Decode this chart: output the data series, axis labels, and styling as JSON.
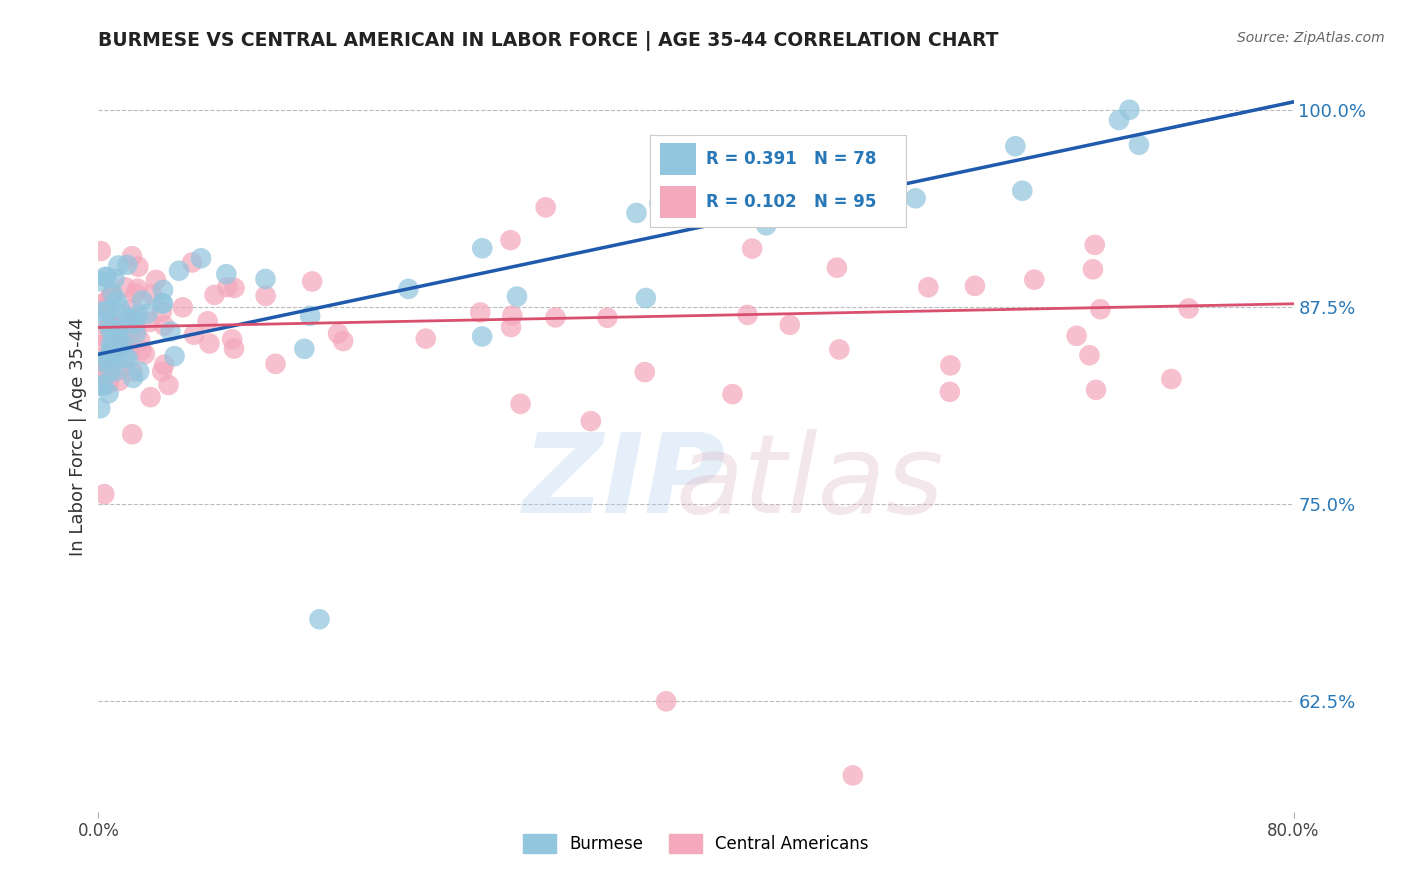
{
  "title": "BURMESE VS CENTRAL AMERICAN IN LABOR FORCE | AGE 35-44 CORRELATION CHART",
  "source": "Source: ZipAtlas.com",
  "ylabel": "In Labor Force | Age 35-44",
  "xlim": [
    0.0,
    0.8
  ],
  "ylim": [
    0.555,
    1.03
  ],
  "ytick_positions": [
    0.625,
    0.75,
    0.875,
    1.0
  ],
  "ytick_labels": [
    "62.5%",
    "75.0%",
    "87.5%",
    "100.0%"
  ],
  "burmese_R": 0.391,
  "burmese_N": 78,
  "central_R": 0.102,
  "central_N": 95,
  "blue_color": "#92c5de",
  "pink_color": "#f4a8bc",
  "blue_line_color": "#1f5aad",
  "pink_line_color": "#d94f6e",
  "legend_color": "#2878b8",
  "background_color": "#ffffff",
  "grid_color": "#bbbbbb",
  "title_color": "#222222",
  "blue_line_x0": 0.0,
  "blue_line_y0": 0.845,
  "blue_line_x1": 0.8,
  "blue_line_y1": 1.005,
  "pink_line_x0": 0.0,
  "pink_line_y0": 0.862,
  "pink_line_x1": 0.8,
  "pink_line_y1": 0.877
}
